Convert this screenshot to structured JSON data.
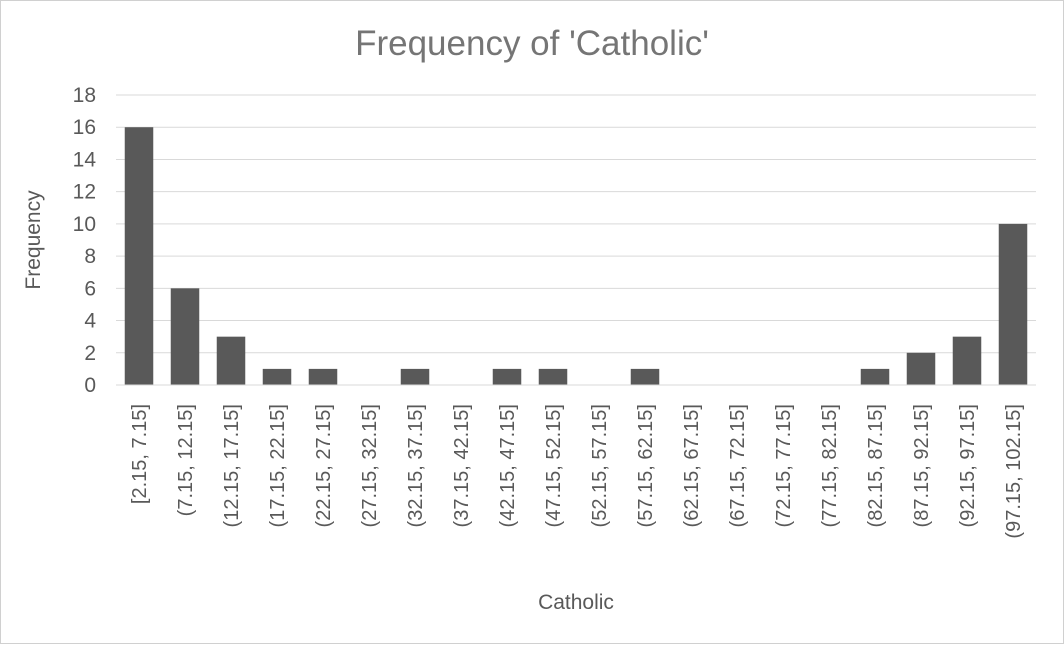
{
  "chart_data": {
    "type": "bar",
    "title": "Frequency of 'Catholic'",
    "xlabel": "Catholic",
    "ylabel": "Frequency",
    "ylim": [
      0,
      18
    ],
    "y_ticks": [
      0,
      2,
      4,
      6,
      8,
      10,
      12,
      14,
      16,
      18
    ],
    "grid": true,
    "categories": [
      "[2.15, 7.15]",
      "(7.15, 12.15]",
      "(12.15, 17.15]",
      "(17.15, 22.15]",
      "(22.15, 27.15]",
      "(27.15, 32.15]",
      "(32.15, 37.15]",
      "(37.15, 42.15]",
      "(42.15, 47.15]",
      "(47.15, 52.15]",
      "(52.15, 57.15]",
      "(57.15, 62.15]",
      "(62.15, 67.15]",
      "(67.15, 72.15]",
      "(72.15, 77.15]",
      "(77.15, 82.15]",
      "(82.15, 87.15]",
      "(87.15, 92.15]",
      "(92.15, 97.15]",
      "(97.15, 102.15]"
    ],
    "values": [
      16,
      6,
      3,
      1,
      1,
      0,
      1,
      0,
      1,
      1,
      0,
      1,
      0,
      0,
      0,
      0,
      1,
      2,
      3,
      10
    ],
    "colors": {
      "bar": "#595959",
      "grid": "#d9d9d9",
      "text": "#595959",
      "title": "#757575",
      "border": "#d0d0d0"
    }
  }
}
